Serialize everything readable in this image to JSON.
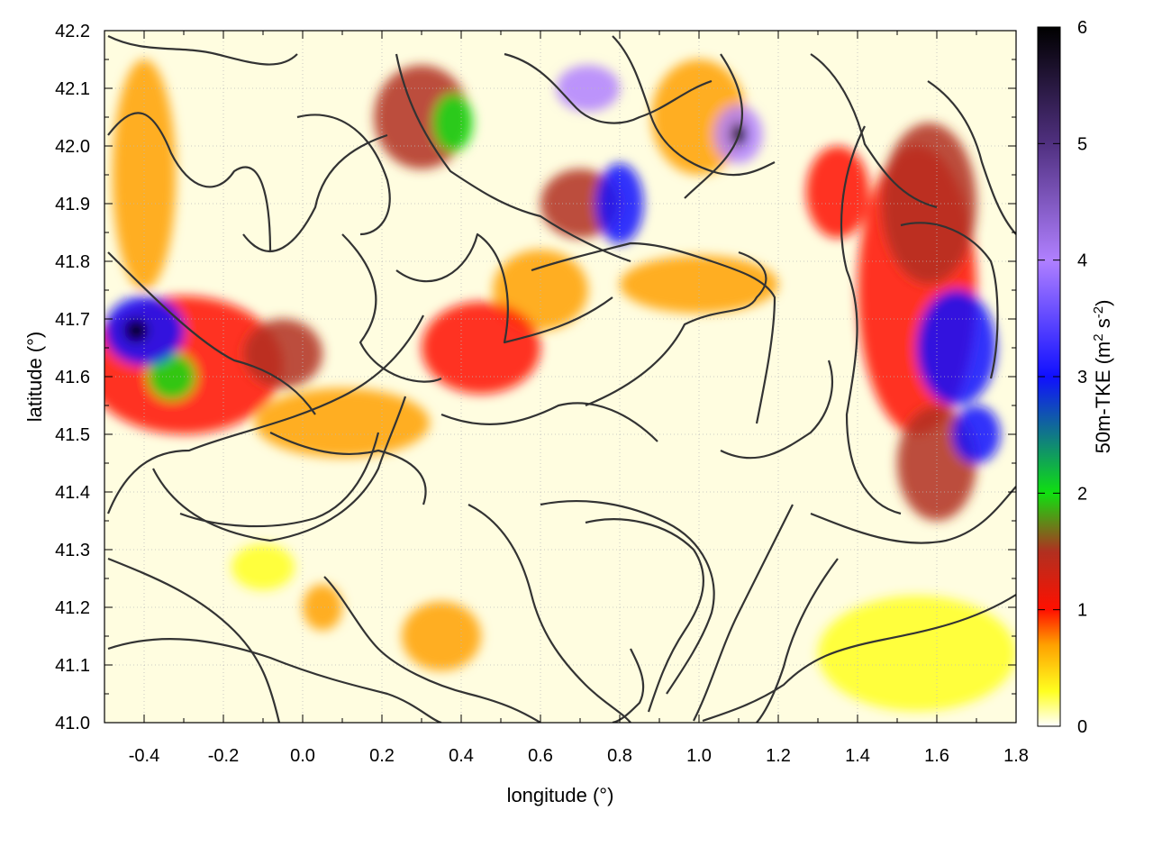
{
  "chart_data": {
    "type": "heatmap",
    "title": "",
    "xlabel": "longitude (°)",
    "ylabel": "latitude (°)",
    "xlim": [
      -0.5,
      1.8
    ],
    "ylim": [
      41.0,
      42.2
    ],
    "xticks": [
      "-0.4",
      "-0.2",
      "0.0",
      "0.2",
      "0.4",
      "0.6",
      "0.8",
      "1.0",
      "1.2",
      "1.4",
      "1.6",
      "1.8"
    ],
    "yticks": [
      "41.0",
      "41.1",
      "41.2",
      "41.3",
      "41.4",
      "41.5",
      "41.6",
      "41.7",
      "41.8",
      "41.9",
      "42.0",
      "42.1",
      "42.2"
    ],
    "grid": true,
    "colorbar": {
      "label": "50m-TKE (m² s⁻²)",
      "label_main": "50m-TKE (m",
      "label_sup1": "2",
      "label_mid": " s",
      "label_sup2": "-2",
      "label_end": ")",
      "range": [
        0,
        6
      ],
      "ticks": [
        "0",
        "1",
        "2",
        "3",
        "4",
        "5",
        "6"
      ],
      "stops": [
        {
          "v": 0.0,
          "c": "#ffffff"
        },
        {
          "v": 0.3,
          "c": "#ffff20"
        },
        {
          "v": 0.7,
          "c": "#ffa000"
        },
        {
          "v": 1.0,
          "c": "#ff1000"
        },
        {
          "v": 1.5,
          "c": "#b03020"
        },
        {
          "v": 2.0,
          "c": "#10e010"
        },
        {
          "v": 3.0,
          "c": "#1010ff"
        },
        {
          "v": 4.0,
          "c": "#b080ff"
        },
        {
          "v": 5.0,
          "c": "#503080"
        },
        {
          "v": 6.0,
          "c": "#000000"
        }
      ]
    },
    "tke_blobs": [
      {
        "x": -0.4,
        "y": 41.68,
        "rx": 0.1,
        "ry": 0.06,
        "v": 3.5
      },
      {
        "x": -0.42,
        "y": 41.68,
        "rx": 0.03,
        "ry": 0.02,
        "v": 6.0
      },
      {
        "x": -0.33,
        "y": 41.6,
        "rx": 0.06,
        "ry": 0.04,
        "v": 2.2
      },
      {
        "x": -0.3,
        "y": 41.62,
        "rx": 0.25,
        "ry": 0.12,
        "v": 1.4
      },
      {
        "x": -0.05,
        "y": 41.64,
        "rx": 0.1,
        "ry": 0.06,
        "v": 1.5
      },
      {
        "x": -0.4,
        "y": 41.95,
        "rx": 0.08,
        "ry": 0.2,
        "v": 0.8
      },
      {
        "x": 0.1,
        "y": 41.52,
        "rx": 0.22,
        "ry": 0.06,
        "v": 0.9
      },
      {
        "x": 0.45,
        "y": 41.65,
        "rx": 0.15,
        "ry": 0.08,
        "v": 1.0
      },
      {
        "x": 0.6,
        "y": 41.75,
        "rx": 0.12,
        "ry": 0.07,
        "v": 0.8
      },
      {
        "x": 1.0,
        "y": 41.76,
        "rx": 0.2,
        "ry": 0.05,
        "v": 0.9
      },
      {
        "x": 0.3,
        "y": 42.05,
        "rx": 0.12,
        "ry": 0.09,
        "v": 1.5
      },
      {
        "x": 0.38,
        "y": 42.04,
        "rx": 0.05,
        "ry": 0.05,
        "v": 2.0
      },
      {
        "x": 0.72,
        "y": 42.1,
        "rx": 0.08,
        "ry": 0.04,
        "v": 4.0
      },
      {
        "x": 0.8,
        "y": 41.9,
        "rx": 0.06,
        "ry": 0.07,
        "v": 3.0
      },
      {
        "x": 0.7,
        "y": 41.9,
        "rx": 0.1,
        "ry": 0.06,
        "v": 1.5
      },
      {
        "x": 1.1,
        "y": 42.02,
        "rx": 0.06,
        "ry": 0.05,
        "v": 4.5
      },
      {
        "x": 1.1,
        "y": 42.02,
        "rx": 0.02,
        "ry": 0.02,
        "v": 6.0
      },
      {
        "x": 1.0,
        "y": 42.05,
        "rx": 0.12,
        "ry": 0.1,
        "v": 0.9
      },
      {
        "x": 1.58,
        "y": 41.9,
        "rx": 0.12,
        "ry": 0.14,
        "v": 1.8
      },
      {
        "x": 1.65,
        "y": 41.65,
        "rx": 0.1,
        "ry": 0.1,
        "v": 3.0
      },
      {
        "x": 1.7,
        "y": 41.5,
        "rx": 0.06,
        "ry": 0.05,
        "v": 3.5
      },
      {
        "x": 1.6,
        "y": 41.45,
        "rx": 0.1,
        "ry": 0.1,
        "v": 1.5
      },
      {
        "x": 1.55,
        "y": 41.75,
        "rx": 0.15,
        "ry": 0.25,
        "v": 1.2
      },
      {
        "x": 1.35,
        "y": 41.92,
        "rx": 0.08,
        "ry": 0.08,
        "v": 1.0
      },
      {
        "x": 0.35,
        "y": 41.15,
        "rx": 0.1,
        "ry": 0.06,
        "v": 0.8
      },
      {
        "x": 0.05,
        "y": 41.2,
        "rx": 0.05,
        "ry": 0.04,
        "v": 0.8
      },
      {
        "x": -0.1,
        "y": 41.27,
        "rx": 0.08,
        "ry": 0.04,
        "v": 0.6
      },
      {
        "x": 1.55,
        "y": 41.12,
        "rx": 0.25,
        "ry": 0.1,
        "v": 0.3
      }
    ]
  }
}
